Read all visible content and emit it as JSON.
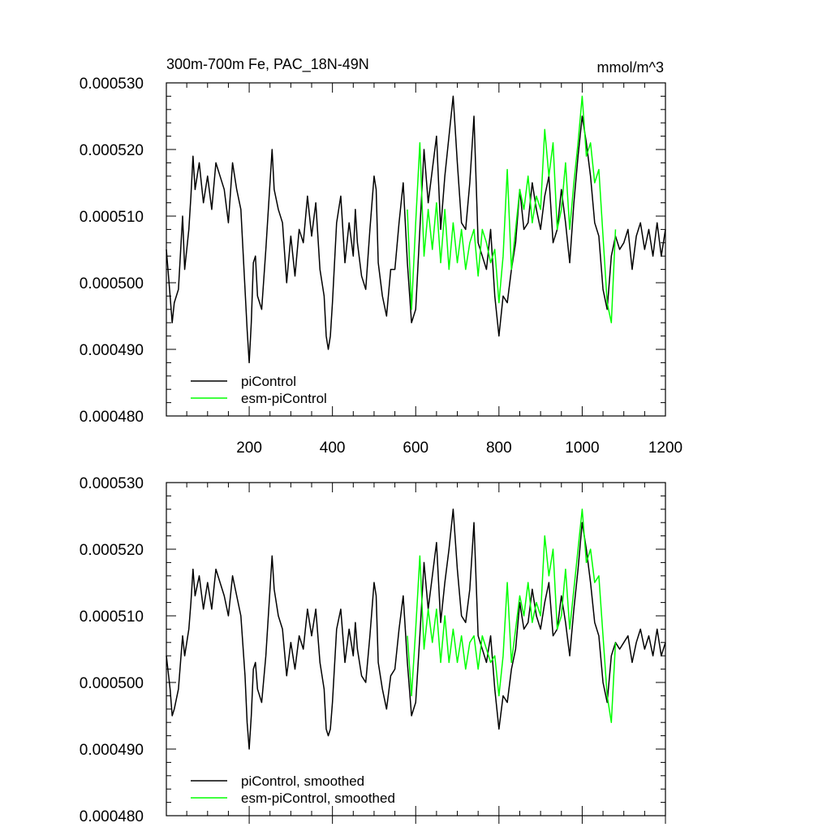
{
  "chart_data": [
    {
      "type": "line",
      "title": "300m-700m Fe, PAC_18N-49N",
      "units": "mmol/m^3",
      "xlim": [
        1,
        1200
      ],
      "ylim": [
        0.00048,
        0.00053
      ],
      "xticks": [
        200,
        400,
        600,
        800,
        1000,
        1200
      ],
      "xtick_labels": [
        "200",
        "400",
        "600",
        "800",
        "1000",
        "1200"
      ],
      "yticks": [
        0.00048,
        0.00049,
        0.0005,
        0.00051,
        0.00052,
        0.00053
      ],
      "ytick_labels": [
        "0.000480",
        "0.000490",
        "0.000500",
        "0.000510",
        "0.000520",
        "0.000530"
      ],
      "legend_position": "bottom-left",
      "series": [
        {
          "name": "piControl",
          "color": "#000000",
          "x": [
            1,
            10,
            15,
            20,
            30,
            40,
            45,
            55,
            60,
            65,
            70,
            80,
            90,
            100,
            110,
            120,
            130,
            140,
            150,
            160,
            170,
            180,
            190,
            195,
            200,
            205,
            210,
            215,
            220,
            230,
            240,
            250,
            255,
            260,
            270,
            280,
            290,
            300,
            310,
            320,
            330,
            340,
            350,
            360,
            370,
            380,
            385,
            390,
            395,
            400,
            410,
            420,
            430,
            440,
            450,
            455,
            460,
            470,
            480,
            490,
            500,
            505,
            510,
            520,
            530,
            540,
            550,
            560,
            570,
            580,
            590,
            600,
            610,
            620,
            630,
            640,
            650,
            660,
            670,
            680,
            690,
            700,
            710,
            720,
            730,
            740,
            750,
            760,
            770,
            780,
            790,
            800,
            810,
            820,
            830,
            840,
            850,
            860,
            870,
            880,
            890,
            900,
            910,
            920,
            930,
            940,
            950,
            960,
            970,
            980,
            990,
            1000,
            1010,
            1020,
            1030,
            1040,
            1050,
            1060,
            1070,
            1080,
            1090,
            1100,
            1110,
            1120,
            1130,
            1140,
            1150,
            1160,
            1170,
            1180,
            1190,
            1200
          ],
          "values": [
            0.000505,
            0.000498,
            0.000494,
            0.000497,
            0.000499,
            0.00051,
            0.000502,
            0.000508,
            0.000513,
            0.000519,
            0.000514,
            0.000518,
            0.000512,
            0.000516,
            0.000511,
            0.000518,
            0.000516,
            0.000514,
            0.000509,
            0.000518,
            0.000514,
            0.000511,
            0.000499,
            0.000493,
            0.000488,
            0.000494,
            0.000503,
            0.000504,
            0.000498,
            0.000496,
            0.000505,
            0.000515,
            0.00052,
            0.000514,
            0.000511,
            0.000509,
            0.0005,
            0.000507,
            0.000501,
            0.000508,
            0.000506,
            0.000513,
            0.000507,
            0.000512,
            0.000502,
            0.000498,
            0.000492,
            0.00049,
            0.000492,
            0.000497,
            0.000509,
            0.000513,
            0.000503,
            0.000509,
            0.000504,
            0.000511,
            0.000506,
            0.000501,
            0.000499,
            0.000508,
            0.000516,
            0.000514,
            0.000503,
            0.000498,
            0.000495,
            0.000502,
            0.000502,
            0.000509,
            0.000515,
            0.000503,
            0.000494,
            0.000496,
            0.000508,
            0.00052,
            0.000512,
            0.000517,
            0.000522,
            0.000508,
            0.000516,
            0.000522,
            0.000528,
            0.000518,
            0.000509,
            0.000508,
            0.000515,
            0.000525,
            0.000506,
            0.000504,
            0.000502,
            0.000508,
            0.000498,
            0.000492,
            0.000498,
            0.000497,
            0.000502,
            0.000506,
            0.000514,
            0.000508,
            0.000509,
            0.000515,
            0.000511,
            0.000508,
            0.000513,
            0.000516,
            0.000506,
            0.000508,
            0.000514,
            0.000509,
            0.000503,
            0.000512,
            0.000519,
            0.000525,
            0.000521,
            0.000516,
            0.000509,
            0.000507,
            0.000499,
            0.000496,
            0.000504,
            0.000507,
            0.000505,
            0.000506,
            0.000508,
            0.000502,
            0.000507,
            0.000509,
            0.000505,
            0.000508,
            0.000504,
            0.000509,
            0.000504,
            0.000508
          ]
        },
        {
          "name": "esm-piControl",
          "color": "#00ff00",
          "x": [
            580,
            590,
            600,
            610,
            620,
            630,
            640,
            650,
            660,
            670,
            680,
            690,
            700,
            710,
            720,
            730,
            740,
            750,
            760,
            770,
            780,
            790,
            800,
            810,
            820,
            830,
            840,
            850,
            860,
            870,
            880,
            890,
            900,
            910,
            920,
            930,
            940,
            950,
            960,
            970,
            980,
            990,
            1000,
            1010,
            1020,
            1030,
            1040,
            1050,
            1060,
            1070,
            1080
          ],
          "values": [
            0.000511,
            0.000496,
            0.000509,
            0.000521,
            0.000504,
            0.000511,
            0.000505,
            0.000512,
            0.000503,
            0.000511,
            0.000502,
            0.000509,
            0.000503,
            0.000508,
            0.000502,
            0.000506,
            0.000508,
            0.000501,
            0.000508,
            0.000506,
            0.000503,
            0.000505,
            0.000497,
            0.000504,
            0.000517,
            0.000502,
            0.000508,
            0.000514,
            0.000511,
            0.000516,
            0.000509,
            0.000513,
            0.000511,
            0.000523,
            0.000516,
            0.000521,
            0.000508,
            0.000511,
            0.000518,
            0.000508,
            0.000515,
            0.000521,
            0.000528,
            0.000519,
            0.000521,
            0.000515,
            0.000517,
            0.000507,
            0.000497,
            0.000494,
            0.000508
          ]
        }
      ]
    },
    {
      "type": "line",
      "title": "",
      "xlim": [
        1,
        1200
      ],
      "ylim": [
        0.00048,
        0.00053
      ],
      "xticks": [
        200,
        400,
        600,
        800,
        1000,
        1200
      ],
      "yticks": [
        0.00048,
        0.00049,
        0.0005,
        0.00051,
        0.00052,
        0.00053
      ],
      "ytick_labels": [
        "0.000480",
        "0.000490",
        "0.000500",
        "0.000510",
        "0.000520",
        "0.000530"
      ],
      "legend_position": "bottom-left",
      "series": [
        {
          "name": "piControl, smoothed",
          "color": "#000000",
          "x": [
            1,
            10,
            15,
            20,
            30,
            40,
            45,
            55,
            60,
            65,
            70,
            80,
            90,
            100,
            110,
            120,
            130,
            140,
            150,
            160,
            170,
            180,
            190,
            195,
            200,
            205,
            210,
            215,
            220,
            230,
            240,
            250,
            255,
            260,
            270,
            280,
            290,
            300,
            310,
            320,
            330,
            340,
            350,
            360,
            370,
            380,
            385,
            390,
            395,
            400,
            410,
            420,
            430,
            440,
            450,
            455,
            460,
            470,
            480,
            490,
            500,
            505,
            510,
            520,
            530,
            540,
            550,
            560,
            570,
            580,
            590,
            600,
            610,
            620,
            630,
            640,
            650,
            660,
            670,
            680,
            690,
            700,
            710,
            720,
            730,
            740,
            750,
            760,
            770,
            780,
            790,
            800,
            810,
            820,
            830,
            840,
            850,
            860,
            870,
            880,
            890,
            900,
            910,
            920,
            930,
            940,
            950,
            960,
            970,
            980,
            990,
            1000,
            1010,
            1020,
            1030,
            1040,
            1050,
            1060,
            1070,
            1080,
            1090,
            1100,
            1110,
            1120,
            1130,
            1140,
            1150,
            1160,
            1170,
            1180,
            1190,
            1200
          ],
          "values": [
            0.000504,
            0.000499,
            0.000495,
            0.000496,
            0.000499,
            0.000507,
            0.000504,
            0.000508,
            0.000512,
            0.000517,
            0.000513,
            0.000516,
            0.000511,
            0.000515,
            0.000511,
            0.000517,
            0.000515,
            0.000513,
            0.00051,
            0.000516,
            0.000513,
            0.00051,
            0.000501,
            0.000494,
            0.00049,
            0.000495,
            0.000502,
            0.000503,
            0.000499,
            0.000497,
            0.000504,
            0.000514,
            0.000519,
            0.000514,
            0.00051,
            0.000508,
            0.000501,
            0.000506,
            0.000502,
            0.000507,
            0.000505,
            0.000511,
            0.000507,
            0.000511,
            0.000503,
            0.000499,
            0.000493,
            0.000492,
            0.000493,
            0.000497,
            0.000508,
            0.000511,
            0.000503,
            0.000508,
            0.000504,
            0.000509,
            0.000505,
            0.000501,
            0.0005,
            0.000507,
            0.000515,
            0.000513,
            0.000503,
            0.000499,
            0.000496,
            0.000501,
            0.000502,
            0.000508,
            0.000513,
            0.000503,
            0.000495,
            0.000497,
            0.000507,
            0.000518,
            0.000511,
            0.000516,
            0.000521,
            0.000509,
            0.000515,
            0.00052,
            0.000526,
            0.000517,
            0.00051,
            0.000509,
            0.000514,
            0.000524,
            0.000507,
            0.000505,
            0.000503,
            0.000507,
            0.000499,
            0.000493,
            0.000498,
            0.000497,
            0.000502,
            0.000505,
            0.000512,
            0.000508,
            0.000509,
            0.000514,
            0.00051,
            0.000508,
            0.000512,
            0.000515,
            0.000507,
            0.000508,
            0.000513,
            0.000509,
            0.000504,
            0.000511,
            0.000517,
            0.000524,
            0.00052,
            0.000515,
            0.000509,
            0.000507,
            0.0005,
            0.000497,
            0.000504,
            0.000506,
            0.000505,
            0.000506,
            0.000507,
            0.000503,
            0.000506,
            0.000508,
            0.000505,
            0.000507,
            0.000504,
            0.000508,
            0.000504,
            0.000506
          ]
        },
        {
          "name": "esm-piControl, smoothed",
          "color": "#00ff00",
          "x": [
            580,
            590,
            600,
            610,
            620,
            630,
            640,
            650,
            660,
            670,
            680,
            690,
            700,
            710,
            720,
            730,
            740,
            750,
            760,
            770,
            780,
            790,
            800,
            810,
            820,
            830,
            840,
            850,
            860,
            870,
            880,
            890,
            900,
            910,
            920,
            930,
            940,
            950,
            960,
            970,
            980,
            990,
            1000,
            1010,
            1020,
            1030,
            1040,
            1050,
            1060,
            1070,
            1080
          ],
          "values": [
            0.000507,
            0.000498,
            0.000508,
            0.000519,
            0.000505,
            0.000511,
            0.000506,
            0.000511,
            0.000503,
            0.00051,
            0.000503,
            0.000508,
            0.000503,
            0.000507,
            0.000502,
            0.000506,
            0.000507,
            0.000502,
            0.000507,
            0.000505,
            0.000503,
            0.000504,
            0.000498,
            0.000504,
            0.000515,
            0.000503,
            0.000508,
            0.000513,
            0.00051,
            0.000515,
            0.000509,
            0.000512,
            0.00051,
            0.000522,
            0.000516,
            0.00052,
            0.000508,
            0.00051,
            0.000517,
            0.000508,
            0.000514,
            0.00052,
            0.000526,
            0.000518,
            0.00052,
            0.000515,
            0.000516,
            0.000507,
            0.000498,
            0.000494,
            0.000506
          ]
        }
      ]
    }
  ]
}
